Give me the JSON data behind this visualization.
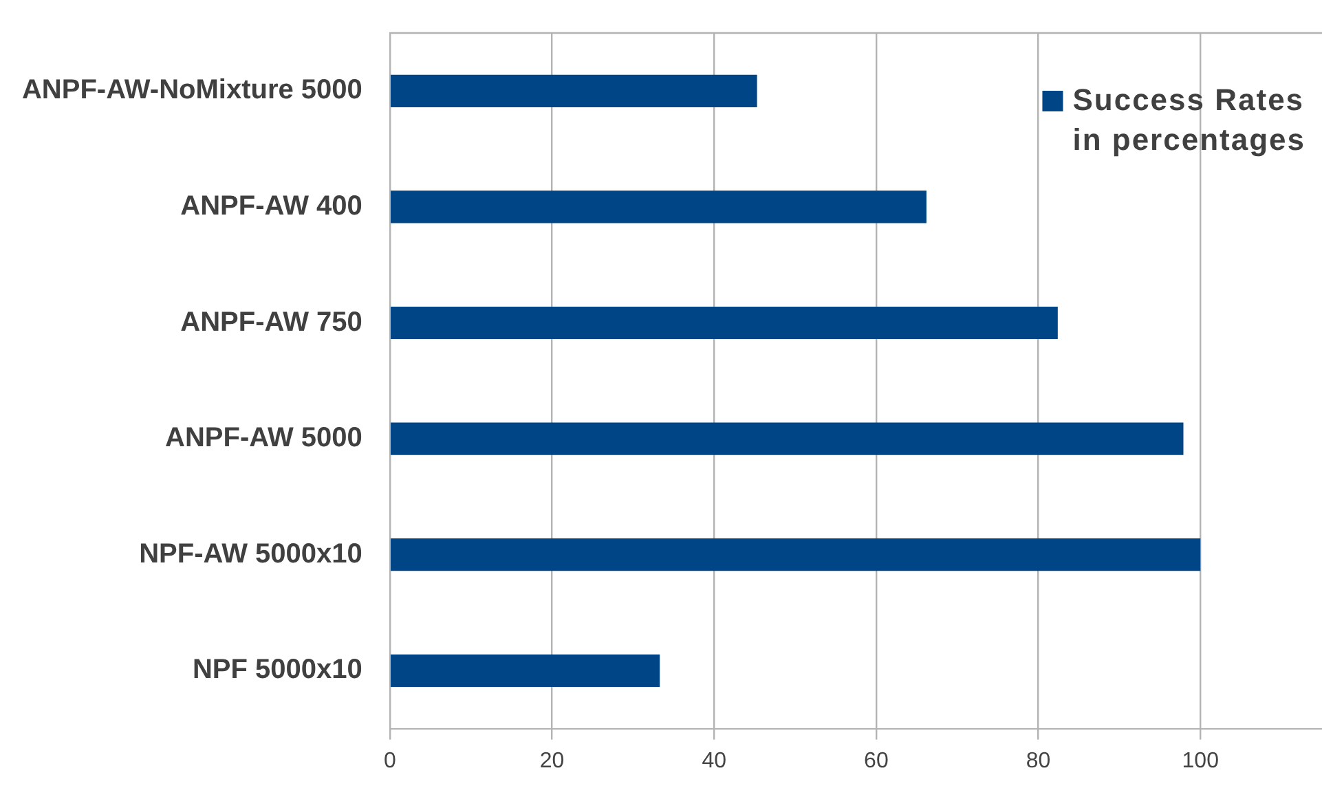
{
  "chart_data": {
    "type": "bar",
    "orientation": "horizontal",
    "categories": [
      "ANPF-AW-NoMixture 5000",
      "ANPF-AW 400",
      "ANPF-AW 750",
      "ANPF-AW 5000",
      "NPF-AW 5000x10",
      "NPF 5000x10"
    ],
    "series": [
      {
        "name": "Success Rates in percentages",
        "color": "#004586",
        "values": [
          45.3,
          66.2,
          82.4,
          97.9,
          100,
          33.3
        ]
      }
    ],
    "xlim": [
      0,
      115
    ],
    "xticks": [
      0,
      20,
      40,
      60,
      80,
      100
    ],
    "grid": "x",
    "legend": "top right"
  }
}
